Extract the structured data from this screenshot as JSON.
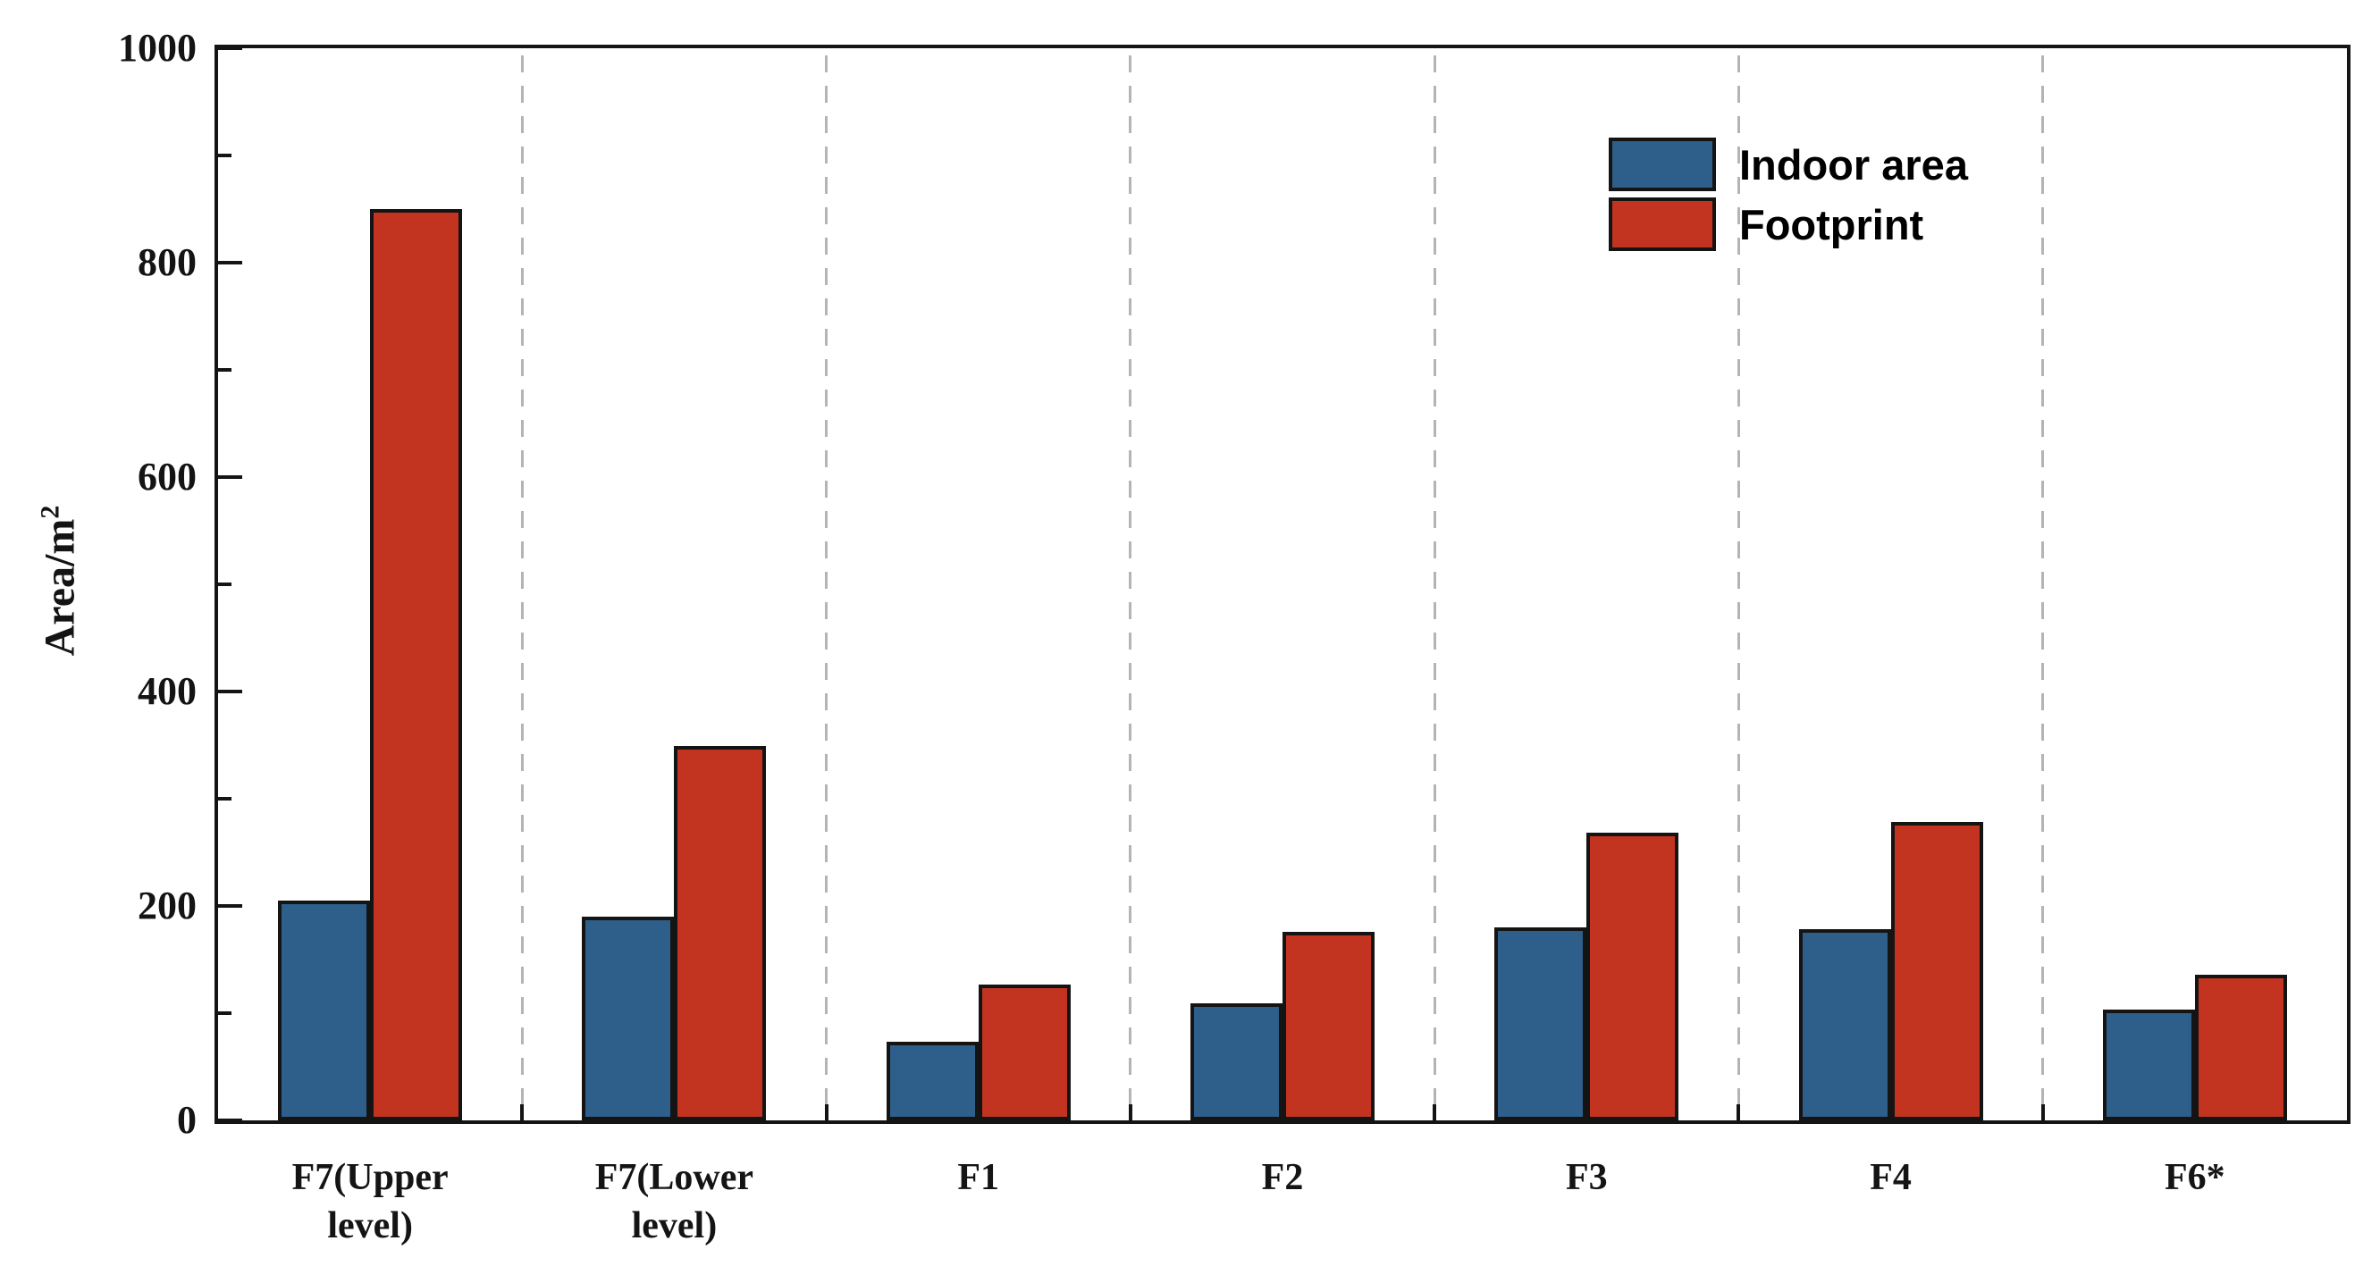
{
  "chart_data": {
    "type": "bar",
    "title": "",
    "xlabel": "",
    "ylabel": "Area/m²",
    "ylabel_base": "Area/m",
    "ylabel_sup": "2",
    "categories": [
      "F7(Upper\nlevel)",
      "F7(Lower\nlevel)",
      "F1",
      "F2",
      "F3",
      "F4",
      "F6*"
    ],
    "series": [
      {
        "name": "Indoor area",
        "color": "#2E5F8A",
        "values": [
          205,
          190,
          73,
          109,
          180,
          178,
          103
        ]
      },
      {
        "name": "Footprint",
        "color": "#C23320",
        "values": [
          850,
          349,
          127,
          176,
          268,
          278,
          136
        ]
      }
    ],
    "ylim": [
      0,
      1000
    ],
    "yticks_major": [
      0,
      200,
      400,
      600,
      800,
      1000
    ],
    "yticks_minor": [
      100,
      300,
      500,
      700,
      900
    ],
    "grid": "vertical dashed separators between categories",
    "grid_color": "#b4b4b4",
    "bar_outline_color": "#141414",
    "legend_position": "top-right-inside"
  }
}
